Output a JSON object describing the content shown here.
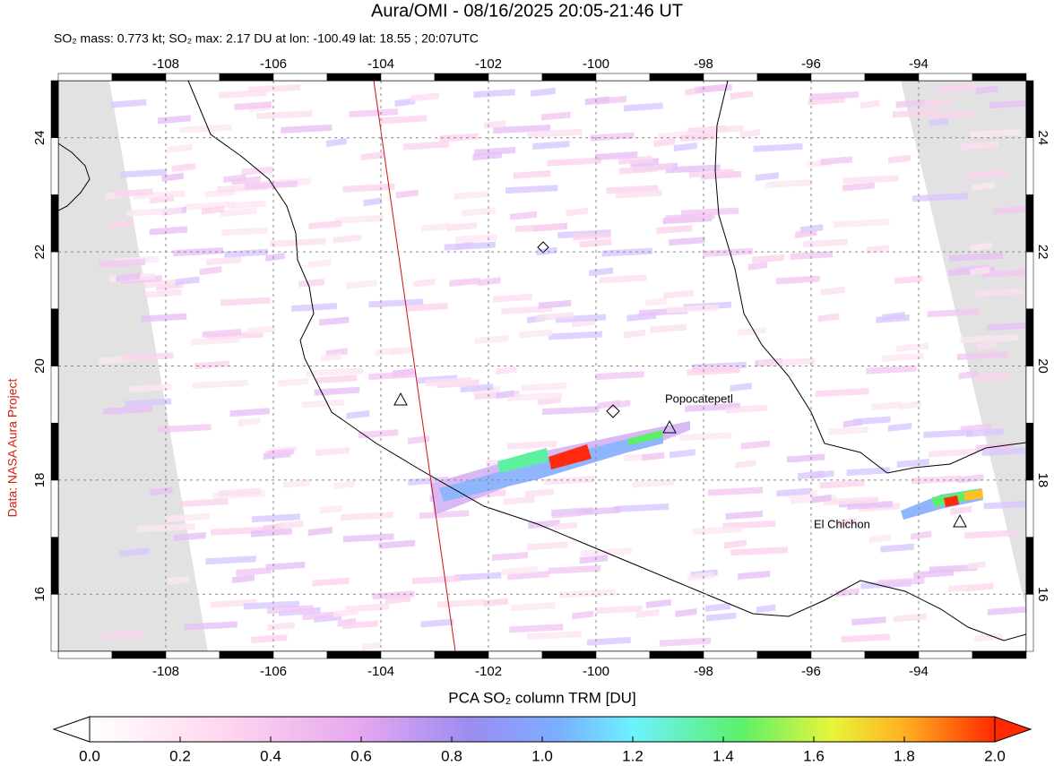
{
  "title": "Aura/OMI - 08/16/2025 20:05-21:46 UT",
  "subtitle": "SO₂ mass: 0.773 kt; SO₂ max: 2.17 DU at lon: -100.49 lat: 18.55 ; 20:07UTC",
  "map": {
    "xlim": [
      -110,
      -92
    ],
    "ylim": [
      15,
      25
    ],
    "xticks": [
      -108,
      -106,
      -104,
      -102,
      -100,
      -98,
      -96,
      -94
    ],
    "yticks": [
      16,
      18,
      20,
      22,
      24
    ],
    "volcano_labels": [
      "Popocatepetl",
      "El Chichon"
    ]
  },
  "colorbar": {
    "label": "PCA SO₂ column TRM [DU]",
    "ticks": [
      {
        "value": 0,
        "label": "0.0"
      },
      {
        "value": 0.2,
        "label": "0.2"
      },
      {
        "value": 0.4,
        "label": "0.4"
      },
      {
        "value": 0.6,
        "label": "0.6"
      },
      {
        "value": 0.8,
        "label": "0.8"
      },
      {
        "value": 1,
        "label": "1.0"
      },
      {
        "value": 1.2,
        "label": "1.2"
      },
      {
        "value": 1.4,
        "label": "1.4"
      },
      {
        "value": 1.6,
        "label": "1.6"
      },
      {
        "value": 1.8,
        "label": "1.8"
      },
      {
        "value": 2,
        "label": "2.0"
      }
    ]
  },
  "credit": "Data: NASA Aura Project"
}
